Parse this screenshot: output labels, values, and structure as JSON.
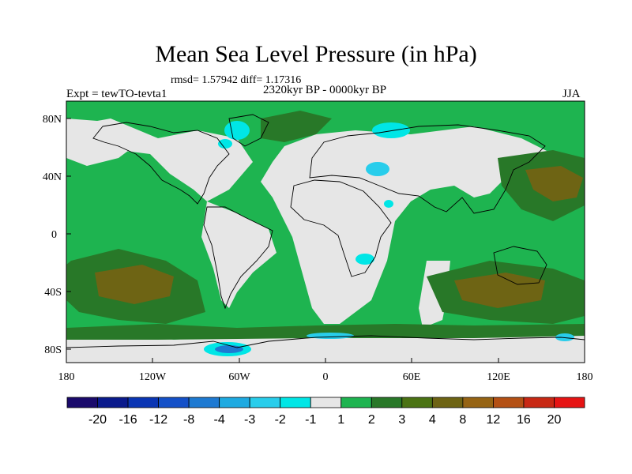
{
  "title": "Mean Sea Level Pressure (in hPa)",
  "stats": "rmsd= 1.57942 diff= 1.17316",
  "subtitle": "2320kyr BP - 0000kyr BP",
  "experiment": "Expt = tewTO-tevta1",
  "season": "JJA",
  "axes": {
    "y_ticks": [
      "80N",
      "40N",
      "0",
      "40S",
      "80S"
    ],
    "x_ticks": [
      "180",
      "120W",
      "60W",
      "0",
      "60E",
      "120E",
      "180"
    ]
  },
  "colorbar": {
    "colors": [
      "#1a0a6b",
      "#0a1a8c",
      "#0a35b4",
      "#1450c8",
      "#1e7ad2",
      "#1eaae1",
      "#28cdeb",
      "#00e6e6",
      "#e6e6e6",
      "#1eb450",
      "#287828",
      "#4b7314",
      "#6e6414",
      "#966414",
      "#b45014",
      "#c82814",
      "#e61414"
    ],
    "labels": [
      "-20",
      "-16",
      "-12",
      "-8",
      "-4",
      "-3",
      "-2",
      "-1",
      "1",
      "2",
      "3",
      "4",
      "8",
      "12",
      "16",
      "20"
    ]
  },
  "map_colors": {
    "neutral": "#e6e6e6",
    "pos_2": "#1eb450",
    "pos_3": "#287828",
    "pos_4": "#4b7314",
    "pos_8": "#6e6414",
    "neg_1": "#00e6e6",
    "neg_2": "#28cdeb",
    "neg_4": "#1e7ad2",
    "coast": "#000000"
  }
}
